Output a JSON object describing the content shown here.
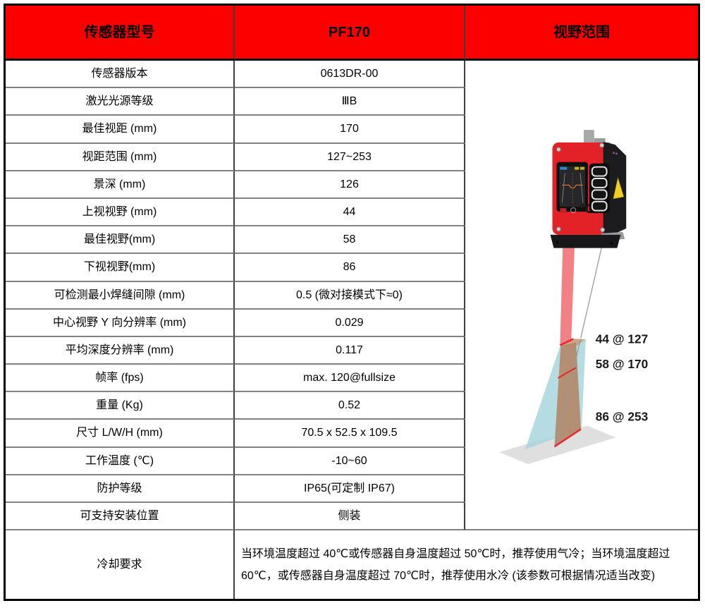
{
  "header": {
    "model_col": "传感器型号",
    "model_value": "PF170",
    "fov_col": "视野范围"
  },
  "specs": [
    {
      "label": "传感器版本",
      "value": "0613DR-00"
    },
    {
      "label": "激光光源等级",
      "value": "ⅢB"
    },
    {
      "label": "最佳视距 (mm)",
      "value": "170"
    },
    {
      "label": "视距范围 (mm)",
      "value": "127~253"
    },
    {
      "label": "景深 (mm)",
      "value": "126"
    },
    {
      "label": "上视视野 (mm)",
      "value": "44"
    },
    {
      "label": "最佳视野(mm)",
      "value": "58"
    },
    {
      "label": "下视视野(mm)",
      "value": "86"
    },
    {
      "label": "可检测最小焊缝间隙 (mm)",
      "value": "0.5 (微对接模式下≈0)"
    },
    {
      "label": "中心视野 Y 向分辨率 (mm)",
      "value": "0.029"
    },
    {
      "label": "平均深度分辨率 (mm)",
      "value": "0.117"
    },
    {
      "label": "帧率 (fps)",
      "value": "max. 120@fullsize"
    },
    {
      "label": "重量 (Kg)",
      "value": "0.52"
    },
    {
      "label": "尺寸 L/W/H (mm)",
      "value": "70.5 x 52.5 x 109.5"
    },
    {
      "label": "工作温度 (℃)",
      "value": "-10~60"
    },
    {
      "label": "防护等级",
      "value": "IP65(可定制 IP67)"
    },
    {
      "label": "可支持安装位置",
      "value": "侧装"
    }
  ],
  "cooling": {
    "label": "冷却要求",
    "text": "当环境温度超过 40℃或传感器自身温度超过 50℃时，推荐使用气冷；当环境温度超过 60℃，或传感器自身温度超过 70℃时，推荐使用水冷 (该参数可根据情况适当改变)"
  },
  "fov_diagram": {
    "labels": [
      "44 @ 127",
      "58 @ 170",
      "86 @ 253"
    ]
  },
  "colors": {
    "header_red": "#FC0000",
    "device_red": "#E32227",
    "beam_red": "#F07A7E",
    "fov_blue": "#A9D6DE",
    "laser_plane_tan": "#B3886A",
    "marker_red": "#E8262C"
  }
}
